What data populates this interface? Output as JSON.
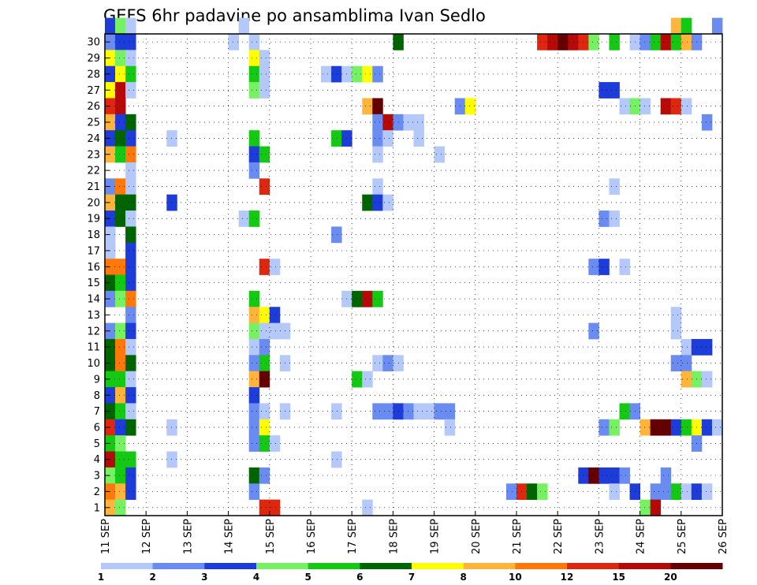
{
  "chart_data": {
    "type": "heatmap",
    "title": "GEFS 6hr padavine po ansamblima Ivan Sedlo",
    "xlabel": "",
    "ylabel": "",
    "grid": true,
    "x_tick_labels": [
      "11 SEP",
      "12 SEP",
      "13 SEP",
      "14 SEP",
      "15 SEP",
      "16 SEP",
      "17 SEP",
      "18 SEP",
      "19 SEP",
      "20 SEP",
      "21 SEP",
      "22 SEP",
      "23 SEP",
      "24 SEP",
      "25 SEP",
      "26 SEP"
    ],
    "y_tick_labels": [
      1,
      2,
      3,
      4,
      5,
      6,
      7,
      8,
      9,
      10,
      11,
      12,
      13,
      14,
      15,
      16,
      17,
      18,
      19,
      20,
      21,
      22,
      23,
      24,
      25,
      26,
      27,
      28,
      29,
      30
    ],
    "x_unit": "6-hour step",
    "x_range": [
      0,
      60
    ],
    "y_range": [
      0,
      30
    ],
    "colorbar": {
      "labels": [
        "1",
        "2",
        "3",
        "4",
        "5",
        "6",
        "7",
        "8",
        "10",
        "12",
        "15",
        "20"
      ],
      "colors": [
        "#b4c8fa",
        "#6a8cf0",
        "#1e3cd8",
        "#78f064",
        "#14c814",
        "#006400",
        "#ffff00",
        "#ffb43c",
        "#ff780a",
        "#dc2810",
        "#b40a0a",
        "#640000"
      ]
    },
    "cells": [
      {
        "x": 0,
        "y": 30,
        "c": 3
      },
      {
        "x": 1,
        "y": 30,
        "c": 4
      },
      {
        "x": 2,
        "y": 30,
        "c": 1
      },
      {
        "x": 0,
        "y": 29,
        "c": 2
      },
      {
        "x": 1,
        "y": 29,
        "c": 3
      },
      {
        "x": 2,
        "y": 29,
        "c": 3
      },
      {
        "x": 0,
        "y": 28,
        "c": 7
      },
      {
        "x": 1,
        "y": 28,
        "c": 4
      },
      {
        "x": 2,
        "y": 28,
        "c": 1
      },
      {
        "x": 0,
        "y": 27,
        "c": 3
      },
      {
        "x": 1,
        "y": 27,
        "c": 7
      },
      {
        "x": 2,
        "y": 27,
        "c": 5
      },
      {
        "x": 0,
        "y": 26,
        "c": 7
      },
      {
        "x": 1,
        "y": 26,
        "c": 11
      },
      {
        "x": 2,
        "y": 26,
        "c": 1
      },
      {
        "x": 0,
        "y": 25,
        "c": 10
      },
      {
        "x": 1,
        "y": 25,
        "c": 11
      },
      {
        "x": 0,
        "y": 24,
        "c": 8
      },
      {
        "x": 1,
        "y": 24,
        "c": 3
      },
      {
        "x": 2,
        "y": 24,
        "c": 6
      },
      {
        "x": 0,
        "y": 23,
        "c": 3
      },
      {
        "x": 1,
        "y": 23,
        "c": 6
      },
      {
        "x": 2,
        "y": 23,
        "c": 3
      },
      {
        "x": 0,
        "y": 22,
        "c": 8
      },
      {
        "x": 1,
        "y": 22,
        "c": 5
      },
      {
        "x": 2,
        "y": 22,
        "c": 9
      },
      {
        "x": 2,
        "y": 21,
        "c": 1
      },
      {
        "x": 0,
        "y": 20,
        "c": 2
      },
      {
        "x": 1,
        "y": 20,
        "c": 9
      },
      {
        "x": 2,
        "y": 20,
        "c": 1
      },
      {
        "x": 0,
        "y": 19,
        "c": 8
      },
      {
        "x": 1,
        "y": 19,
        "c": 6
      },
      {
        "x": 2,
        "y": 19,
        "c": 6
      },
      {
        "x": 0,
        "y": 18,
        "c": 3
      },
      {
        "x": 1,
        "y": 18,
        "c": 6
      },
      {
        "x": 2,
        "y": 18,
        "c": 1
      },
      {
        "x": 0,
        "y": 17,
        "c": 1
      },
      {
        "x": 2,
        "y": 17,
        "c": 6
      },
      {
        "x": 0,
        "y": 16,
        "c": 1
      },
      {
        "x": 2,
        "y": 16,
        "c": 3
      },
      {
        "x": 0,
        "y": 15,
        "c": 9
      },
      {
        "x": 1,
        "y": 15,
        "c": 9
      },
      {
        "x": 2,
        "y": 15,
        "c": 3
      },
      {
        "x": 0,
        "y": 14,
        "c": 6
      },
      {
        "x": 1,
        "y": 14,
        "c": 5
      },
      {
        "x": 2,
        "y": 14,
        "c": 3
      },
      {
        "x": 0,
        "y": 13,
        "c": 2
      },
      {
        "x": 1,
        "y": 13,
        "c": 4
      },
      {
        "x": 2,
        "y": 13,
        "c": 9
      },
      {
        "x": 2,
        "y": 12,
        "c": 2
      },
      {
        "x": 0,
        "y": 11,
        "c": 2
      },
      {
        "x": 1,
        "y": 11,
        "c": 4
      },
      {
        "x": 2,
        "y": 11,
        "c": 3
      },
      {
        "x": 0,
        "y": 10,
        "c": 6
      },
      {
        "x": 1,
        "y": 10,
        "c": 9
      },
      {
        "x": 2,
        "y": 10,
        "c": 1
      },
      {
        "x": 0,
        "y": 9,
        "c": 6
      },
      {
        "x": 1,
        "y": 9,
        "c": 9
      },
      {
        "x": 2,
        "y": 9,
        "c": 6
      },
      {
        "x": 0,
        "y": 8,
        "c": 5
      },
      {
        "x": 1,
        "y": 8,
        "c": 5
      },
      {
        "x": 2,
        "y": 8,
        "c": 1
      },
      {
        "x": 0,
        "y": 7,
        "c": 3
      },
      {
        "x": 1,
        "y": 7,
        "c": 8
      },
      {
        "x": 2,
        "y": 7,
        "c": 3
      },
      {
        "x": 0,
        "y": 6,
        "c": 6
      },
      {
        "x": 1,
        "y": 6,
        "c": 5
      },
      {
        "x": 2,
        "y": 6,
        "c": 1
      },
      {
        "x": 0,
        "y": 5,
        "c": 10
      },
      {
        "x": 1,
        "y": 5,
        "c": 3
      },
      {
        "x": 2,
        "y": 5,
        "c": 6
      },
      {
        "x": 0,
        "y": 4,
        "c": 5
      },
      {
        "x": 1,
        "y": 4,
        "c": 4
      },
      {
        "x": 0,
        "y": 3,
        "c": 11
      },
      {
        "x": 1,
        "y": 3,
        "c": 5
      },
      {
        "x": 2,
        "y": 3,
        "c": 5
      },
      {
        "x": 0,
        "y": 2,
        "c": 4
      },
      {
        "x": 1,
        "y": 2,
        "c": 5
      },
      {
        "x": 2,
        "y": 2,
        "c": 3
      },
      {
        "x": 0,
        "y": 1,
        "c": 9
      },
      {
        "x": 1,
        "y": 1,
        "c": 8
      },
      {
        "x": 2,
        "y": 1,
        "c": 3
      },
      {
        "x": 0,
        "y": 0,
        "c": 8
      },
      {
        "x": 1,
        "y": 0,
        "c": 4
      },
      {
        "x": 14,
        "y": 29,
        "c": 1
      },
      {
        "x": 13,
        "y": 30,
        "c": 1
      },
      {
        "x": 6,
        "y": 23,
        "c": 1
      },
      {
        "x": 6,
        "y": 19,
        "c": 3
      },
      {
        "x": 6,
        "y": 5,
        "c": 1
      },
      {
        "x": 6,
        "y": 3,
        "c": 1
      },
      {
        "x": 12,
        "y": 29,
        "c": 1
      },
      {
        "x": 13,
        "y": 18,
        "c": 1
      },
      {
        "x": 14,
        "y": 28,
        "c": 7
      },
      {
        "x": 15,
        "y": 28,
        "c": 1
      },
      {
        "x": 14,
        "y": 27,
        "c": 5
      },
      {
        "x": 15,
        "y": 27,
        "c": 1
      },
      {
        "x": 14,
        "y": 26,
        "c": 4
      },
      {
        "x": 15,
        "y": 26,
        "c": 1
      },
      {
        "x": 14,
        "y": 23,
        "c": 5
      },
      {
        "x": 14,
        "y": 22,
        "c": 3
      },
      {
        "x": 15,
        "y": 22,
        "c": 5
      },
      {
        "x": 14,
        "y": 21,
        "c": 2
      },
      {
        "x": 15,
        "y": 20,
        "c": 10
      },
      {
        "x": 14,
        "y": 18,
        "c": 5
      },
      {
        "x": 15,
        "y": 15,
        "c": 10
      },
      {
        "x": 16,
        "y": 15,
        "c": 1
      },
      {
        "x": 14,
        "y": 13,
        "c": 5
      },
      {
        "x": 14,
        "y": 12,
        "c": 8
      },
      {
        "x": 15,
        "y": 12,
        "c": 7
      },
      {
        "x": 16,
        "y": 12,
        "c": 3
      },
      {
        "x": 14,
        "y": 11,
        "c": 4
      },
      {
        "x": 15,
        "y": 11,
        "c": 1
      },
      {
        "x": 16,
        "y": 11,
        "c": 1
      },
      {
        "x": 17,
        "y": 11,
        "c": 1
      },
      {
        "x": 14,
        "y": 10,
        "c": 1
      },
      {
        "x": 15,
        "y": 10,
        "c": 2
      },
      {
        "x": 14,
        "y": 9,
        "c": 2
      },
      {
        "x": 15,
        "y": 9,
        "c": 5
      },
      {
        "x": 17,
        "y": 9,
        "c": 1
      },
      {
        "x": 14,
        "y": 8,
        "c": 8
      },
      {
        "x": 15,
        "y": 8,
        "c": 12
      },
      {
        "x": 14,
        "y": 7,
        "c": 3
      },
      {
        "x": 14,
        "y": 6,
        "c": 2
      },
      {
        "x": 15,
        "y": 6,
        "c": 1
      },
      {
        "x": 17,
        "y": 6,
        "c": 1
      },
      {
        "x": 14,
        "y": 5,
        "c": 2
      },
      {
        "x": 15,
        "y": 5,
        "c": 7
      },
      {
        "x": 14,
        "y": 4,
        "c": 2
      },
      {
        "x": 15,
        "y": 4,
        "c": 5
      },
      {
        "x": 16,
        "y": 4,
        "c": 1
      },
      {
        "x": 14,
        "y": 2,
        "c": 6
      },
      {
        "x": 15,
        "y": 2,
        "c": 2
      },
      {
        "x": 14,
        "y": 1,
        "c": 2
      },
      {
        "x": 15,
        "y": 0,
        "c": 10
      },
      {
        "x": 16,
        "y": 0,
        "c": 10
      },
      {
        "x": 21,
        "y": 27,
        "c": 1
      },
      {
        "x": 22,
        "y": 27,
        "c": 3
      },
      {
        "x": 23,
        "y": 27,
        "c": 1
      },
      {
        "x": 24,
        "y": 27,
        "c": 4
      },
      {
        "x": 25,
        "y": 27,
        "c": 7
      },
      {
        "x": 26,
        "y": 27,
        "c": 2
      },
      {
        "x": 25,
        "y": 25,
        "c": 8
      },
      {
        "x": 26,
        "y": 25,
        "c": 12
      },
      {
        "x": 26,
        "y": 24,
        "c": 2
      },
      {
        "x": 27,
        "y": 24,
        "c": 11
      },
      {
        "x": 28,
        "y": 24,
        "c": 2
      },
      {
        "x": 29,
        "y": 24,
        "c": 1
      },
      {
        "x": 30,
        "y": 24,
        "c": 1
      },
      {
        "x": 26,
        "y": 23,
        "c": 2
      },
      {
        "x": 27,
        "y": 23,
        "c": 1
      },
      {
        "x": 30,
        "y": 23,
        "c": 1
      },
      {
        "x": 22,
        "y": 23,
        "c": 5
      },
      {
        "x": 23,
        "y": 23,
        "c": 3
      },
      {
        "x": 26,
        "y": 22,
        "c": 1
      },
      {
        "x": 32,
        "y": 22,
        "c": 1
      },
      {
        "x": 26,
        "y": 20,
        "c": 1
      },
      {
        "x": 25,
        "y": 19,
        "c": 6
      },
      {
        "x": 26,
        "y": 19,
        "c": 3
      },
      {
        "x": 27,
        "y": 19,
        "c": 1
      },
      {
        "x": 22,
        "y": 17,
        "c": 2
      },
      {
        "x": 23,
        "y": 13,
        "c": 1
      },
      {
        "x": 24,
        "y": 13,
        "c": 6
      },
      {
        "x": 25,
        "y": 13,
        "c": 11
      },
      {
        "x": 26,
        "y": 13,
        "c": 5
      },
      {
        "x": 26,
        "y": 9,
        "c": 1
      },
      {
        "x": 27,
        "y": 9,
        "c": 2
      },
      {
        "x": 28,
        "y": 9,
        "c": 1
      },
      {
        "x": 24,
        "y": 8,
        "c": 5
      },
      {
        "x": 25,
        "y": 8,
        "c": 1
      },
      {
        "x": 22,
        "y": 6,
        "c": 1
      },
      {
        "x": 26,
        "y": 6,
        "c": 2
      },
      {
        "x": 27,
        "y": 6,
        "c": 2
      },
      {
        "x": 28,
        "y": 6,
        "c": 3
      },
      {
        "x": 29,
        "y": 6,
        "c": 2
      },
      {
        "x": 30,
        "y": 6,
        "c": 1
      },
      {
        "x": 31,
        "y": 6,
        "c": 1
      },
      {
        "x": 32,
        "y": 6,
        "c": 2
      },
      {
        "x": 33,
        "y": 6,
        "c": 2
      },
      {
        "x": 33,
        "y": 5,
        "c": 1
      },
      {
        "x": 22,
        "y": 3,
        "c": 1
      },
      {
        "x": 25,
        "y": 0,
        "c": 1
      },
      {
        "x": 28,
        "y": 29,
        "c": 6
      },
      {
        "x": 34,
        "y": 25,
        "c": 2
      },
      {
        "x": 35,
        "y": 25,
        "c": 7
      },
      {
        "x": 42,
        "y": 29,
        "c": 10
      },
      {
        "x": 43,
        "y": 29,
        "c": 11
      },
      {
        "x": 44,
        "y": 29,
        "c": 12
      },
      {
        "x": 45,
        "y": 29,
        "c": 11
      },
      {
        "x": 46,
        "y": 29,
        "c": 10
      },
      {
        "x": 47,
        "y": 29,
        "c": 4
      },
      {
        "x": 49,
        "y": 29,
        "c": 5
      },
      {
        "x": 51,
        "y": 29,
        "c": 1
      },
      {
        "x": 52,
        "y": 29,
        "c": 2
      },
      {
        "x": 53,
        "y": 29,
        "c": 5
      },
      {
        "x": 54,
        "y": 29,
        "c": 11
      },
      {
        "x": 55,
        "y": 29,
        "c": 5
      },
      {
        "x": 56,
        "y": 29,
        "c": 8
      },
      {
        "x": 57,
        "y": 29,
        "c": 2
      },
      {
        "x": 55,
        "y": 30,
        "c": 8
      },
      {
        "x": 56,
        "y": 30,
        "c": 5
      },
      {
        "x": 59,
        "y": 30,
        "c": 2
      },
      {
        "x": 48,
        "y": 26,
        "c": 3
      },
      {
        "x": 49,
        "y": 26,
        "c": 3
      },
      {
        "x": 50,
        "y": 25,
        "c": 1
      },
      {
        "x": 51,
        "y": 25,
        "c": 4
      },
      {
        "x": 52,
        "y": 25,
        "c": 1
      },
      {
        "x": 54,
        "y": 25,
        "c": 11
      },
      {
        "x": 55,
        "y": 25,
        "c": 10
      },
      {
        "x": 56,
        "y": 25,
        "c": 1
      },
      {
        "x": 58,
        "y": 24,
        "c": 2
      },
      {
        "x": 49,
        "y": 20,
        "c": 1
      },
      {
        "x": 48,
        "y": 18,
        "c": 2
      },
      {
        "x": 49,
        "y": 18,
        "c": 1
      },
      {
        "x": 47,
        "y": 15,
        "c": 2
      },
      {
        "x": 48,
        "y": 15,
        "c": 3
      },
      {
        "x": 50,
        "y": 15,
        "c": 1
      },
      {
        "x": 55,
        "y": 12,
        "c": 1
      },
      {
        "x": 47,
        "y": 11,
        "c": 2
      },
      {
        "x": 55,
        "y": 11,
        "c": 1
      },
      {
        "x": 56,
        "y": 10,
        "c": 1
      },
      {
        "x": 57,
        "y": 10,
        "c": 3
      },
      {
        "x": 58,
        "y": 10,
        "c": 3
      },
      {
        "x": 55,
        "y": 9,
        "c": 2
      },
      {
        "x": 56,
        "y": 9,
        "c": 2
      },
      {
        "x": 56,
        "y": 8,
        "c": 8
      },
      {
        "x": 57,
        "y": 8,
        "c": 4
      },
      {
        "x": 58,
        "y": 8,
        "c": 1
      },
      {
        "x": 50,
        "y": 6,
        "c": 5
      },
      {
        "x": 51,
        "y": 6,
        "c": 2
      },
      {
        "x": 48,
        "y": 5,
        "c": 2
      },
      {
        "x": 49,
        "y": 5,
        "c": 4
      },
      {
        "x": 52,
        "y": 5,
        "c": 8
      },
      {
        "x": 53,
        "y": 5,
        "c": 12
      },
      {
        "x": 54,
        "y": 5,
        "c": 12
      },
      {
        "x": 55,
        "y": 5,
        "c": 3
      },
      {
        "x": 56,
        "y": 5,
        "c": 5
      },
      {
        "x": 57,
        "y": 5,
        "c": 7
      },
      {
        "x": 58,
        "y": 5,
        "c": 3
      },
      {
        "x": 59,
        "y": 5,
        "c": 1
      },
      {
        "x": 57,
        "y": 4,
        "c": 2
      },
      {
        "x": 46,
        "y": 2,
        "c": 3
      },
      {
        "x": 47,
        "y": 2,
        "c": 12
      },
      {
        "x": 48,
        "y": 2,
        "c": 3
      },
      {
        "x": 49,
        "y": 2,
        "c": 3
      },
      {
        "x": 50,
        "y": 2,
        "c": 2
      },
      {
        "x": 54,
        "y": 2,
        "c": 2
      },
      {
        "x": 39,
        "y": 1,
        "c": 2
      },
      {
        "x": 40,
        "y": 1,
        "c": 10
      },
      {
        "x": 41,
        "y": 1,
        "c": 6
      },
      {
        "x": 42,
        "y": 1,
        "c": 4
      },
      {
        "x": 49,
        "y": 1,
        "c": 1
      },
      {
        "x": 51,
        "y": 1,
        "c": 3
      },
      {
        "x": 53,
        "y": 1,
        "c": 2
      },
      {
        "x": 54,
        "y": 1,
        "c": 2
      },
      {
        "x": 55,
        "y": 1,
        "c": 5
      },
      {
        "x": 56,
        "y": 1,
        "c": 1
      },
      {
        "x": 57,
        "y": 1,
        "c": 3
      },
      {
        "x": 58,
        "y": 1,
        "c": 1
      },
      {
        "x": 52,
        "y": 0,
        "c": 4
      },
      {
        "x": 53,
        "y": 0,
        "c": 11
      }
    ]
  }
}
